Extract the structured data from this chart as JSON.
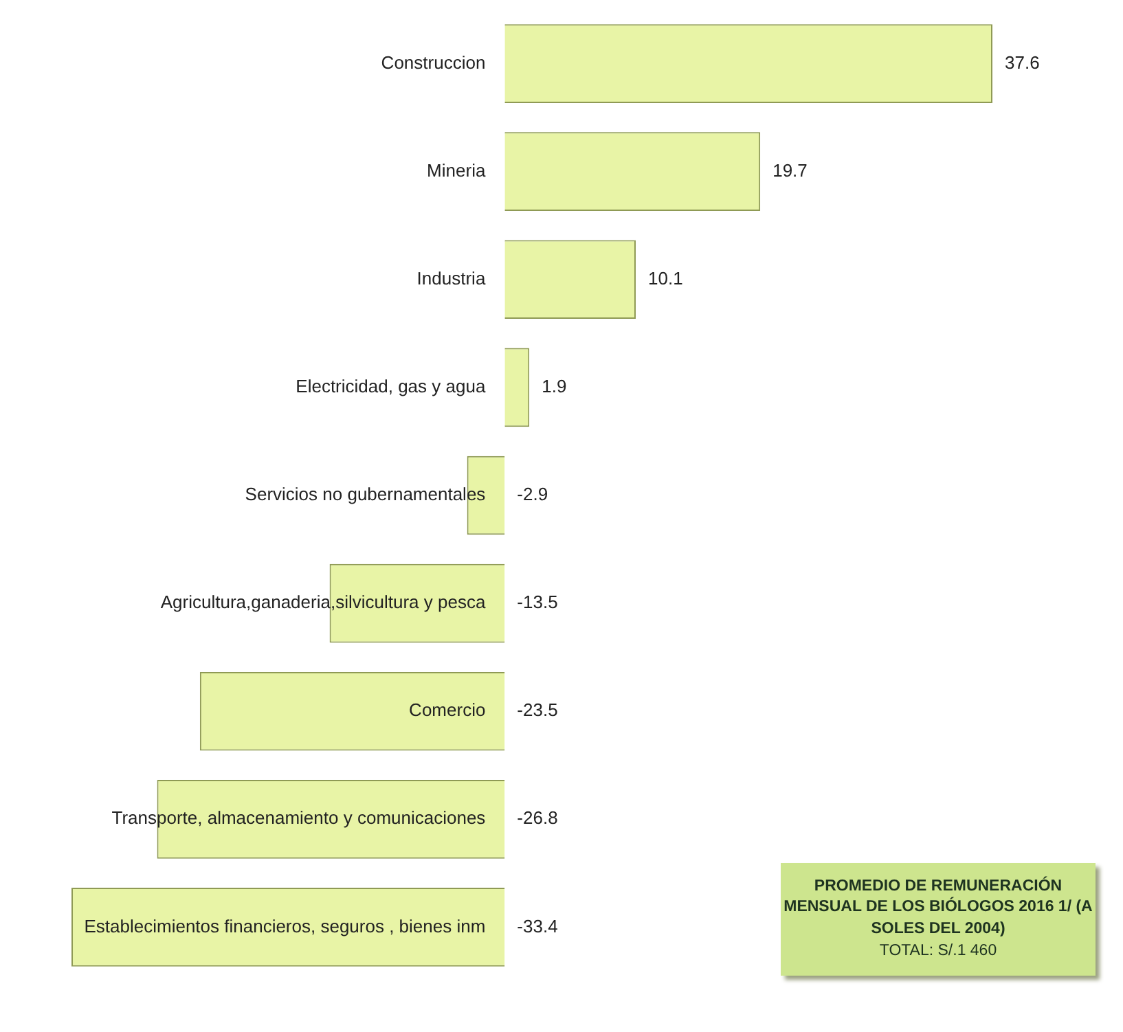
{
  "chart_data": {
    "type": "bar",
    "orientation": "horizontal",
    "categories": [
      "Construccion",
      "Mineria",
      "Industria",
      "Electricidad, gas y agua",
      "Servicios no gubernamentales",
      "Agricultura,ganaderia,silvicultura y pesca",
      "Comercio",
      "Transporte, almacenamiento y comunicaciones",
      "Establecimientos financieros, seguros , bienes inm"
    ],
    "values": [
      37.6,
      19.7,
      10.1,
      1.9,
      -2.9,
      -13.5,
      -23.5,
      -26.8,
      -33.4
    ],
    "color": "#e8f4a6",
    "data_labels": true,
    "tick_labels": "y",
    "legend": false,
    "annotations": [
      "PROMEDIO DE REMUNERACIÓN MENSUAL DE LOS BIÓLOGOS 2016 1/ (A SOLES DEL 2004)",
      "TOTAL: S/.1 460"
    ]
  }
}
